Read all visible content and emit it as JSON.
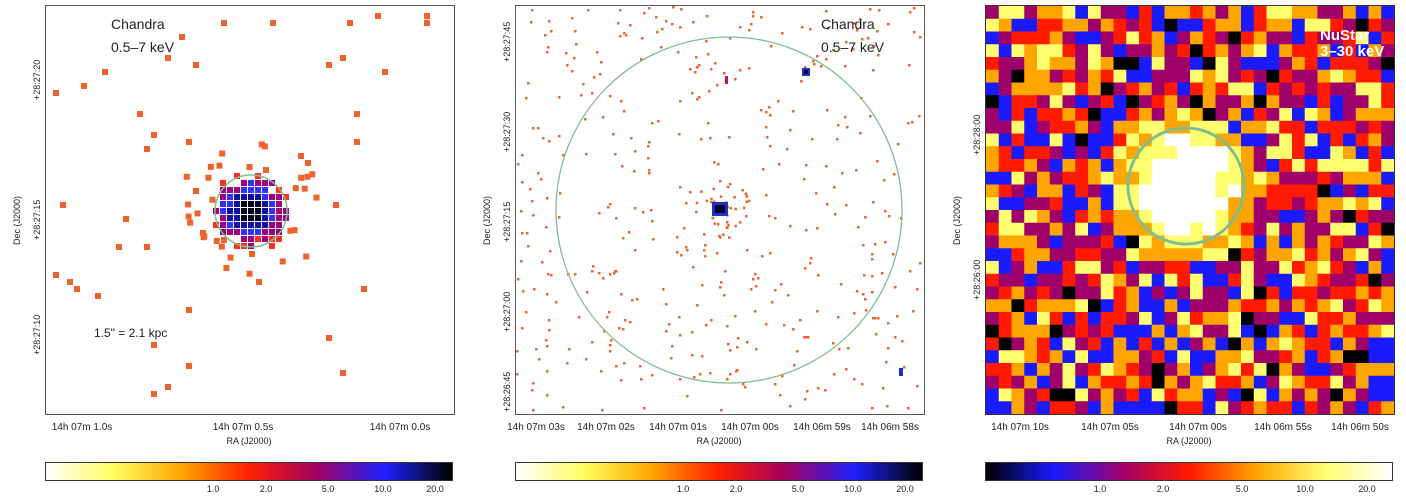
{
  "panels": [
    {
      "id": "left",
      "instrument": "Chandra",
      "band": "0.5–7 keV",
      "scale_note": "1.5\" = 2.1 kpc",
      "ylabel": "Dec (J2000)",
      "xlabel": "RA (J2000)",
      "yticks": [
        "+28:27:20",
        "+28:27:15",
        "+28:27:10"
      ],
      "xticks": [
        "14h 07m 1.0s",
        "14h 07m 0.5s",
        "14h 07m 0.0s"
      ],
      "colorbar": {
        "ticks": [
          "1.0",
          "2.0",
          "5.0",
          "10.0",
          "20.0"
        ],
        "colors": [
          "#ffffff",
          "#ffff60",
          "#ffa500",
          "#ff2000",
          "#a00060",
          "#2020ff",
          "#000000"
        ]
      }
    },
    {
      "id": "middle",
      "instrument": "Chandra",
      "band": "0.5–7 keV",
      "ylabel": "Dec (J2000)",
      "xlabel": "RA (J2000)",
      "yticks": [
        "+28:27:45",
        "+28:27:30",
        "+28:27:15",
        "+28:27:00",
        "+28:26:45"
      ],
      "xticks": [
        "14h 07m 03s",
        "14h 07m 02s",
        "14h 07m 01s",
        "14h 07m 00s",
        "14h 06m 59s",
        "14h 06m 58s"
      ],
      "colorbar": {
        "ticks": [
          "1.0",
          "2.0",
          "5.0",
          "10.0",
          "20.0"
        ],
        "colors": [
          "#ffffff",
          "#ffff60",
          "#ffa500",
          "#ff2000",
          "#a00060",
          "#2020ff",
          "#000000"
        ]
      }
    },
    {
      "id": "right",
      "instrument": "NuStar",
      "band": "3–30 keV",
      "ylabel": "Dec (J2000)",
      "xlabel": "RA (J2000)",
      "yticks": [
        "+28:28:00",
        "+28:26:00"
      ],
      "xticks": [
        "14h 07m 10s",
        "14h 07m 05s",
        "14h 07m 00s",
        "14h 06m 55s",
        "14h 06m 50s"
      ],
      "colorbar": {
        "ticks": [
          "1.0",
          "2.0",
          "5.0",
          "10.0",
          "20.0"
        ],
        "colors": [
          "#000000",
          "#1a1aff",
          "#a0006a",
          "#ff1a00",
          "#ffa500",
          "#ffff70",
          "#ffffff"
        ]
      }
    }
  ]
}
